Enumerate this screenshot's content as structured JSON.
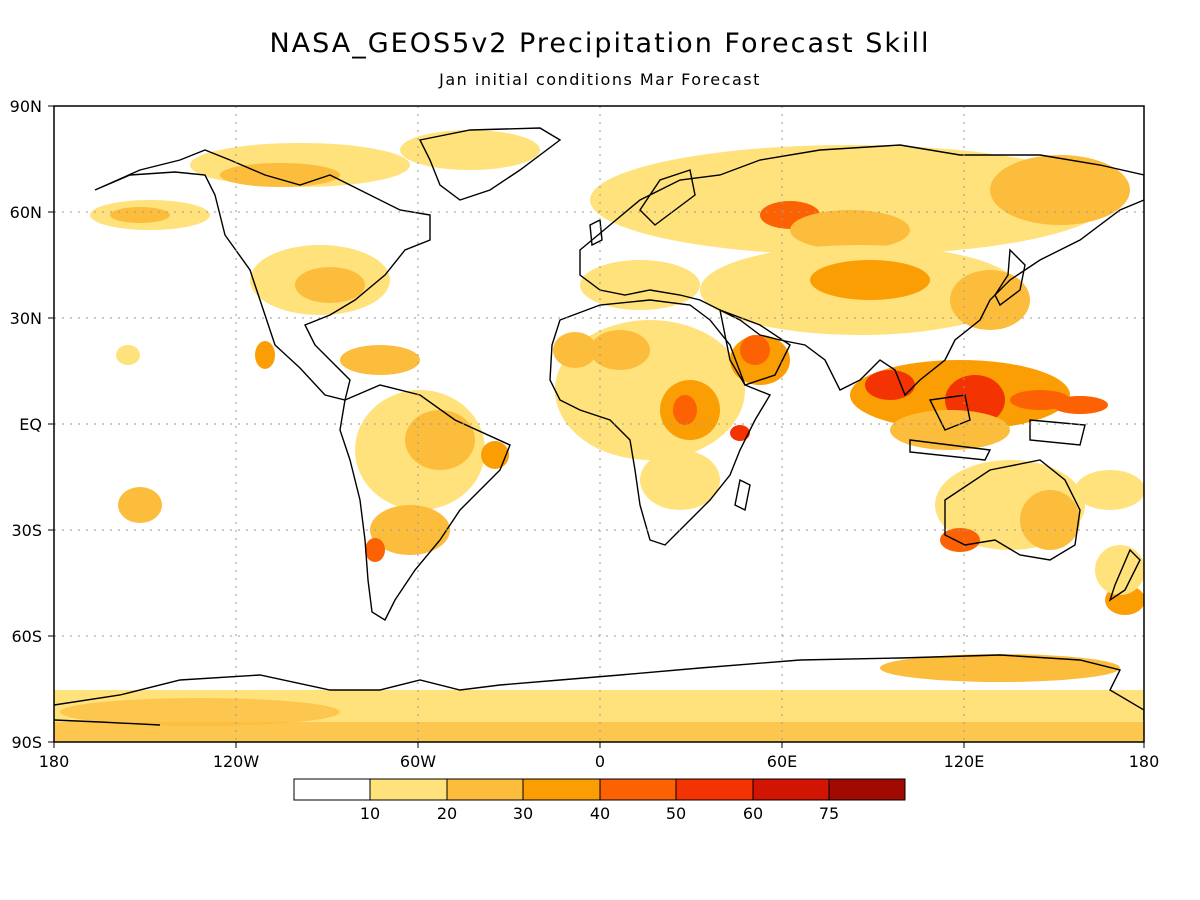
{
  "title": "NASA_GEOS5v2 Precipitation Forecast Skill",
  "subtitle": "Jan initial conditions  Mar Forecast",
  "lat_labels": [
    "90N",
    "60N",
    "30N",
    "EQ",
    "30S",
    "60S",
    "90S"
  ],
  "lon_labels": [
    "180",
    "120W",
    "60W",
    "0",
    "60E",
    "120E",
    "180"
  ],
  "legend": {
    "labels": [
      "10",
      "20",
      "30",
      "40",
      "50",
      "60",
      "75"
    ],
    "colors": [
      "#ffffff",
      "#ffe27c",
      "#fcbc3c",
      "#fb9e04",
      "#fc6104",
      "#f33402",
      "#d11502",
      "#a00a00"
    ]
  }
}
